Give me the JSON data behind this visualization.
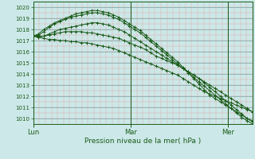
{
  "title": "Pression niveau de la mer( hPa )",
  "bg_color": "#cce8e8",
  "grid_minor_color": "#e8a0a0",
  "grid_major_color": "#88b0b0",
  "line_color": "#1a5c1a",
  "ylim": [
    1009.5,
    1020.5
  ],
  "yticks": [
    1010,
    1011,
    1012,
    1013,
    1014,
    1015,
    1016,
    1017,
    1018,
    1019,
    1020
  ],
  "day_labels": [
    "Lun",
    "Mar",
    "Mer"
  ],
  "day_positions": [
    0,
    48,
    96
  ],
  "total_hours": 108,
  "series": [
    [
      1017.4,
      1017.3,
      1017.4,
      1017.6,
      1017.8,
      1018.0,
      1018.1,
      1018.2,
      1018.3,
      1018.4,
      1018.5,
      1018.6,
      1018.6,
      1018.5,
      1018.4,
      1018.2,
      1018.0,
      1017.8,
      1017.5,
      1017.2,
      1016.9,
      1016.6,
      1016.3,
      1016.0,
      1015.7,
      1015.4,
      1015.1,
      1014.8,
      1014.5,
      1014.2,
      1013.9,
      1013.6,
      1013.2,
      1012.8,
      1012.4,
      1012.0,
      1011.6,
      1011.2,
      1010.8,
      1010.4,
      1010.0,
      1009.7
    ],
    [
      1017.4,
      1017.5,
      1017.8,
      1018.2,
      1018.5,
      1018.7,
      1018.9,
      1019.1,
      1019.2,
      1019.3,
      1019.4,
      1019.5,
      1019.5,
      1019.4,
      1019.3,
      1019.1,
      1018.9,
      1018.6,
      1018.3,
      1018.0,
      1017.7,
      1017.3,
      1016.9,
      1016.5,
      1016.1,
      1015.7,
      1015.3,
      1014.9,
      1014.5,
      1014.1,
      1013.7,
      1013.3,
      1012.9,
      1012.5,
      1012.1,
      1011.7,
      1011.3,
      1010.9,
      1010.5,
      1010.1,
      1009.8,
      1009.5
    ],
    [
      1017.4,
      1017.6,
      1018.0,
      1018.3,
      1018.6,
      1018.8,
      1019.0,
      1019.2,
      1019.4,
      1019.5,
      1019.6,
      1019.7,
      1019.7,
      1019.6,
      1019.5,
      1019.3,
      1019.1,
      1018.8,
      1018.5,
      1018.2,
      1017.9,
      1017.5,
      1017.1,
      1016.7,
      1016.3,
      1015.9,
      1015.5,
      1015.1,
      1014.6,
      1014.1,
      1013.6,
      1013.1,
      1012.6,
      1012.1,
      1011.8,
      1011.5,
      1011.2,
      1010.9,
      1010.6,
      1010.3,
      1010.0,
      1009.8
    ],
    [
      1017.4,
      1017.4,
      1017.4,
      1017.5,
      1017.6,
      1017.7,
      1017.8,
      1017.8,
      1017.8,
      1017.8,
      1017.7,
      1017.7,
      1017.6,
      1017.5,
      1017.4,
      1017.3,
      1017.2,
      1017.0,
      1016.8,
      1016.6,
      1016.4,
      1016.2,
      1015.9,
      1015.6,
      1015.4,
      1015.2,
      1015.0,
      1014.8,
      1014.5,
      1014.2,
      1013.9,
      1013.6,
      1013.3,
      1013.0,
      1012.7,
      1012.4,
      1012.1,
      1011.8,
      1011.5,
      1011.2,
      1010.9,
      1010.6
    ],
    [
      1017.4,
      1017.3,
      1017.2,
      1017.1,
      1017.1,
      1017.0,
      1017.0,
      1016.9,
      1016.9,
      1016.8,
      1016.8,
      1016.7,
      1016.6,
      1016.5,
      1016.4,
      1016.3,
      1016.1,
      1015.9,
      1015.7,
      1015.5,
      1015.3,
      1015.1,
      1014.9,
      1014.7,
      1014.5,
      1014.3,
      1014.1,
      1013.9,
      1013.6,
      1013.3,
      1013.0,
      1012.7,
      1012.4,
      1012.2,
      1012.0,
      1011.8,
      1011.6,
      1011.4,
      1011.2,
      1011.0,
      1010.8,
      1010.6
    ]
  ]
}
